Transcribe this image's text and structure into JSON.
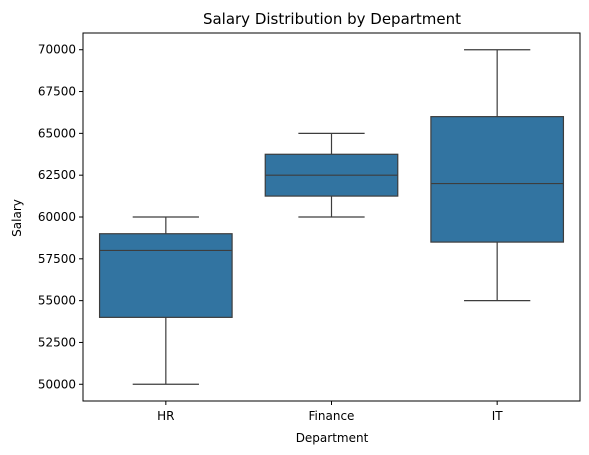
{
  "chart_data": {
    "type": "box",
    "title": "Salary Distribution by Department",
    "xlabel": "Department",
    "ylabel": "Salary",
    "categories": [
      "HR",
      "Finance",
      "IT"
    ],
    "boxes": [
      {
        "category": "HR",
        "min": 50000,
        "q1": 54000,
        "median": 58000,
        "q3": 59000,
        "max": 60000
      },
      {
        "category": "Finance",
        "min": 60000,
        "q1": 61250,
        "median": 62500,
        "q3": 63750,
        "max": 65000
      },
      {
        "category": "IT",
        "min": 55000,
        "q1": 58500,
        "median": 62000,
        "q3": 66000,
        "max": 70000
      }
    ],
    "yticks": [
      "50000",
      "52500",
      "55000",
      "57500",
      "60000",
      "62500",
      "65000",
      "67500",
      "70000"
    ],
    "ylim": [
      49000,
      71000
    ],
    "grid": false,
    "box_color": "#3274a1",
    "line_color": "#3d3d3d"
  }
}
